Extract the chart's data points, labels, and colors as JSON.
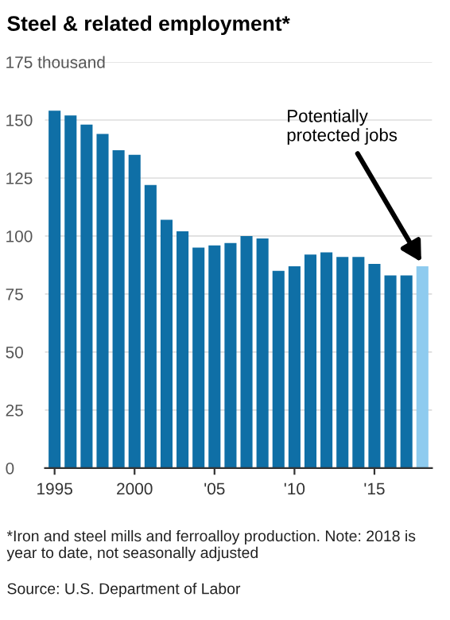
{
  "chart_data": {
    "type": "bar",
    "title": "Steel & related employment*",
    "x": [
      1995,
      1996,
      1997,
      1998,
      1999,
      2000,
      2001,
      2002,
      2003,
      2004,
      2005,
      2006,
      2007,
      2008,
      2009,
      2010,
      2011,
      2012,
      2013,
      2014,
      2015,
      2016,
      2017,
      2018
    ],
    "values": [
      154,
      152,
      148,
      144,
      137,
      135,
      122,
      107,
      102,
      95,
      96,
      97,
      100,
      99,
      85,
      87,
      92,
      93,
      91,
      91,
      88,
      83,
      83,
      87
    ],
    "colors": [
      "#0f6fa6",
      "#0f6fa6",
      "#0f6fa6",
      "#0f6fa6",
      "#0f6fa6",
      "#0f6fa6",
      "#0f6fa6",
      "#0f6fa6",
      "#0f6fa6",
      "#0f6fa6",
      "#0f6fa6",
      "#0f6fa6",
      "#0f6fa6",
      "#0f6fa6",
      "#0f6fa6",
      "#0f6fa6",
      "#0f6fa6",
      "#0f6fa6",
      "#0f6fa6",
      "#0f6fa6",
      "#0f6fa6",
      "#0f6fa6",
      "#0f6fa6",
      "#8ecbef"
    ],
    "xlim": [
      1994.4,
      2018.6
    ],
    "xticks": [
      1995,
      2000,
      {
        "value": 2005,
        "label": "'05"
      },
      {
        "value": 2010,
        "label": "'10"
      },
      {
        "value": 2015,
        "label": "'15"
      }
    ],
    "ylim": [
      0,
      175
    ],
    "yticks": [
      0,
      25,
      50,
      75,
      100,
      125,
      150,
      {
        "value": 175,
        "label": "175 thousand"
      }
    ],
    "grid": "y",
    "annotations": [
      {
        "text": "Potentially\nprotected jobs",
        "x": 2018,
        "y": 87
      },
      "*Iron and steel mills and ferroalloy production. Note: 2018 is year to date, not seasonally adjusted",
      "Source: U.S. Department of Labor"
    ]
  }
}
